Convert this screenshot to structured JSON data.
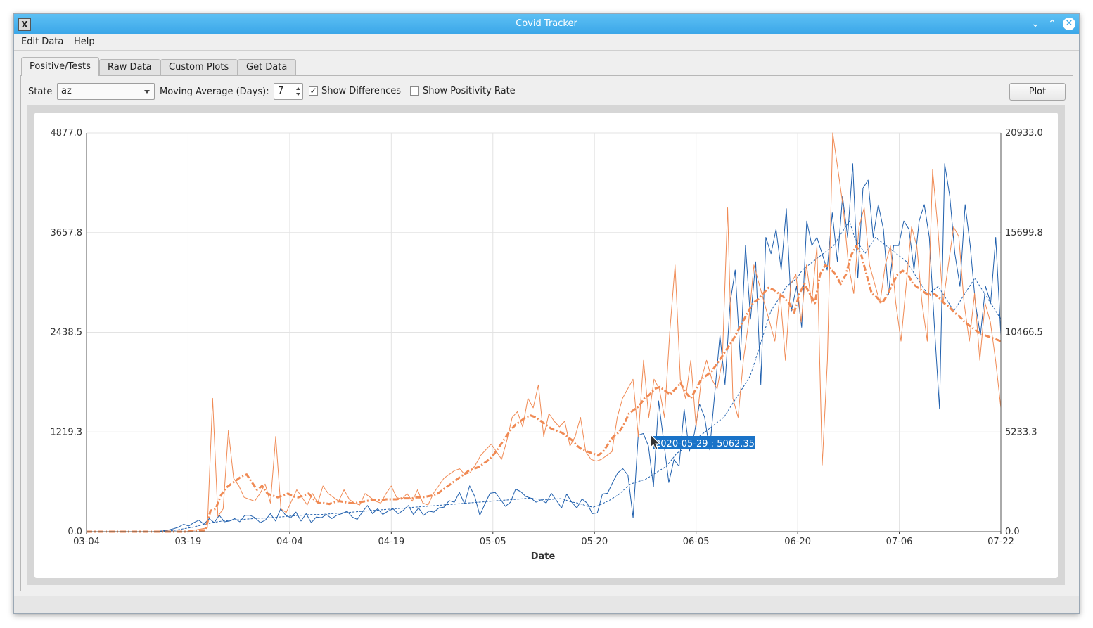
{
  "window": {
    "title": "Covid Tracker"
  },
  "menu": {
    "items": [
      "Edit Data",
      "Help"
    ]
  },
  "tabs": [
    "Positive/Tests",
    "Raw Data",
    "Custom Plots",
    "Get Data"
  ],
  "controls": {
    "state_label": "State",
    "state_value": "az",
    "moving_avg_label": "Moving Average (Days):",
    "moving_avg_value": "7",
    "show_differences_label": "Show Differences",
    "show_differences_checked": true,
    "show_positivity_label": "Show Positivity Rate",
    "show_positivity_checked": false,
    "plot_button": "Plot"
  },
  "chart_data": {
    "type": "line",
    "xlabel": "Date",
    "x_ticks": [
      "03-04",
      "03-19",
      "04-04",
      "04-19",
      "05-05",
      "05-20",
      "06-05",
      "06-20",
      "07-06",
      "07-22"
    ],
    "y_left_ticks": [
      "0.0",
      "1219.3",
      "2438.5",
      "3657.8",
      "4877.0"
    ],
    "y_right_ticks": [
      "0.0",
      "5233.3",
      "10466.5",
      "15699.8",
      "20933.0"
    ],
    "y_left_range": [
      0,
      4877
    ],
    "y_right_range": [
      0,
      20933
    ],
    "grid": true,
    "colors": {
      "positives": "#1f5fad",
      "tests": "#f08a54"
    },
    "tooltip": "2020-05-29 : 5062.35",
    "series": [
      {
        "axis": "left",
        "style": "solid",
        "color": "#1f5fad",
        "values": [
          0,
          0,
          0,
          0,
          0,
          0,
          0,
          0,
          0,
          0,
          0,
          0,
          0,
          0,
          5,
          10,
          20,
          35,
          55,
          90,
          70,
          110,
          140,
          90,
          160,
          110,
          200,
          120,
          130,
          160,
          120,
          200,
          200,
          170,
          110,
          140,
          220,
          130,
          280,
          200,
          170,
          240,
          130,
          220,
          110,
          180,
          170,
          210,
          160,
          200,
          220,
          250,
          180,
          150,
          240,
          320,
          220,
          280,
          210,
          250,
          280,
          220,
          260,
          320,
          210,
          290,
          200,
          250,
          240,
          290,
          300,
          380,
          360,
          480,
          340,
          560,
          430,
          200,
          340,
          470,
          480,
          400,
          310,
          360,
          520,
          490,
          430,
          410,
          360,
          390,
          350,
          470,
          380,
          290,
          460,
          360,
          290,
          400,
          350,
          220,
          230,
          460,
          470,
          600,
          720,
          770,
          690,
          170,
          1180,
          1200,
          1050,
          550,
          1600,
          1100,
          600,
          880,
          800,
          1500,
          980,
          1200,
          1560,
          1400,
          1000,
          1700,
          2400,
          1800,
          2800,
          3200,
          2100,
          3500,
          2600,
          3300,
          1800,
          3600,
          3400,
          3700,
          3200,
          3950,
          2700,
          3000,
          2500,
          3800,
          3500,
          3600,
          3400,
          3200,
          3900,
          3300,
          4100,
          3600,
          4500,
          3100,
          4200,
          4300,
          3600,
          4000,
          3700,
          2900,
          3500,
          3500,
          3800,
          3700,
          3200,
          3800,
          4000,
          3600,
          2500,
          1500,
          4500,
          4100,
          3400,
          3000,
          4000,
          3500,
          2800,
          2400,
          3000,
          2800,
          3600,
          2400
        ]
      },
      {
        "axis": "left",
        "style": "dashed",
        "color": "#1f5fad",
        "values": [
          0,
          0,
          0,
          0,
          0,
          0,
          0,
          0,
          0,
          0,
          0,
          0,
          0,
          0,
          2,
          5,
          10,
          18,
          28,
          40,
          50,
          65,
          80,
          95,
          110,
          120,
          130,
          135,
          140,
          145,
          150,
          155,
          160,
          165,
          165,
          170,
          175,
          180,
          185,
          190,
          195,
          200,
          205,
          210,
          210,
          210,
          215,
          220,
          225,
          230,
          235,
          240,
          245,
          250,
          255,
          260,
          265,
          270,
          275,
          280,
          285,
          290,
          295,
          300,
          305,
          310,
          315,
          320,
          325,
          330,
          335,
          340,
          345,
          350,
          355,
          360,
          365,
          370,
          375,
          380,
          385,
          390,
          395,
          400,
          405,
          410,
          400,
          395,
          390,
          395,
          400,
          405,
          380,
          360,
          350,
          330,
          310,
          300,
          320,
          350,
          380,
          420,
          460,
          520,
          580,
          600,
          620,
          640,
          680,
          720,
          760,
          800,
          880,
          960,
          1000,
          1050,
          1100,
          1150,
          1200,
          1250,
          1300,
          1350,
          1400,
          1500,
          1600,
          1700,
          1800,
          1900,
          2100,
          2300,
          2500,
          2700,
          2800,
          2900,
          3000,
          3050,
          3100,
          3200,
          3250,
          3300,
          3350,
          3400,
          3450,
          3500,
          3600,
          3700,
          3800,
          3600,
          3500,
          3400,
          3500,
          3600,
          3550,
          3500,
          3450,
          3400,
          3350,
          3300,
          3200,
          3100,
          3000,
          2900,
          2950,
          3000,
          2900,
          2800,
          2700,
          2800,
          2900,
          3000,
          3100,
          3000,
          2900,
          2800,
          2700,
          2600
        ]
      },
      {
        "axis": "right",
        "style": "solid",
        "color": "#f08a54",
        "values": [
          0,
          0,
          0,
          0,
          0,
          0,
          0,
          0,
          0,
          0,
          0,
          0,
          0,
          0,
          0,
          0,
          0,
          0,
          0,
          0,
          50,
          100,
          150,
          200,
          7000,
          800,
          1200,
          5300,
          2800,
          2400,
          1800,
          1700,
          1600,
          2000,
          2500,
          1500,
          5000,
          1200,
          1000,
          1600,
          2200,
          1800,
          1400,
          2000,
          1500,
          2400,
          2000,
          1800,
          1600,
          2200,
          1700,
          1500,
          1400,
          2000,
          1800,
          1600,
          1500,
          2000,
          2400,
          1800,
          1700,
          2000,
          1600,
          2200,
          1500,
          1400,
          2000,
          2400,
          2800,
          3000,
          3200,
          3300,
          3000,
          3100,
          3500,
          4000,
          4300,
          4600,
          4200,
          3800,
          4800,
          6000,
          6300,
          5500,
          7000,
          6500,
          7700,
          5000,
          6200,
          5800,
          5500,
          5800,
          4500,
          5000,
          6000,
          4200,
          3800,
          3700,
          3800,
          4000,
          4200,
          6000,
          7000,
          7500,
          8000,
          5000,
          9000,
          6000,
          8000,
          7500,
          6000,
          10500,
          14000,
          8000,
          7000,
          9000,
          5500,
          8000,
          9000,
          8000,
          7500,
          9000,
          17000,
          7000,
          6000,
          9000,
          11000,
          14000,
          13000,
          12000,
          11000,
          10000,
          12500,
          9000,
          13000,
          13500,
          11000,
          14000,
          12000,
          15000,
          3500,
          9000,
          21000,
          19000,
          17000,
          14000,
          12500,
          16000,
          17000,
          14000,
          13000,
          12000,
          14000,
          15000,
          12000,
          10000,
          13000,
          16000,
          15000,
          12000,
          10000,
          19000,
          16000,
          12000,
          14000,
          16000,
          15500,
          12000,
          10000,
          12500,
          9000,
          12000,
          11000,
          9000,
          6500
        ]
      },
      {
        "axis": "right",
        "style": "dashdot-thick",
        "color": "#f08a54",
        "values": [
          0,
          0,
          0,
          0,
          0,
          0,
          0,
          0,
          0,
          0,
          0,
          0,
          0,
          0,
          0,
          0,
          0,
          0,
          0,
          0,
          20,
          40,
          60,
          80,
          1100,
          1200,
          1900,
          2300,
          2500,
          2700,
          2900,
          3000,
          2600,
          2200,
          2400,
          2000,
          1900,
          1800,
          1900,
          2000,
          1850,
          1800,
          1900,
          2000,
          1700,
          1500,
          1500,
          1450,
          1550,
          1600,
          1550,
          1500,
          1500,
          1550,
          1600,
          1650,
          1650,
          1650,
          1700,
          1700,
          1700,
          1750,
          1750,
          1750,
          1800,
          1800,
          1850,
          1900,
          2000,
          2200,
          2400,
          2600,
          2800,
          3000,
          3200,
          3300,
          3400,
          3600,
          3800,
          4100,
          4500,
          4900,
          5300,
          5600,
          5800,
          6000,
          6100,
          6000,
          5800,
          5600,
          5400,
          5300,
          5200,
          5000,
          4800,
          4500,
          4300,
          4200,
          4100,
          4000,
          4200,
          4600,
          5000,
          5200,
          5600,
          6200,
          6400,
          6600,
          7000,
          7200,
          7500,
          7600,
          7400,
          7200,
          7500,
          7800,
          7300,
          7000,
          7500,
          8000,
          8200,
          8400,
          8800,
          9200,
          9600,
          10000,
          10500,
          11000,
          11500,
          12000,
          12200,
          12500,
          12800,
          12700,
          12500,
          12300,
          12000,
          11500,
          12500,
          13000,
          12500,
          12000,
          13500,
          14000,
          13800,
          13500,
          13000,
          13500,
          14500,
          15000,
          14500,
          13500,
          12500,
          12300,
          12000,
          12400,
          13000,
          13500,
          13700,
          13500,
          13000,
          12800,
          12600,
          12400,
          12500,
          12300,
          12000,
          11800,
          11500,
          11300,
          11000,
          10800,
          10600,
          10400,
          10300,
          10200,
          10100,
          10000
        ]
      }
    ]
  }
}
